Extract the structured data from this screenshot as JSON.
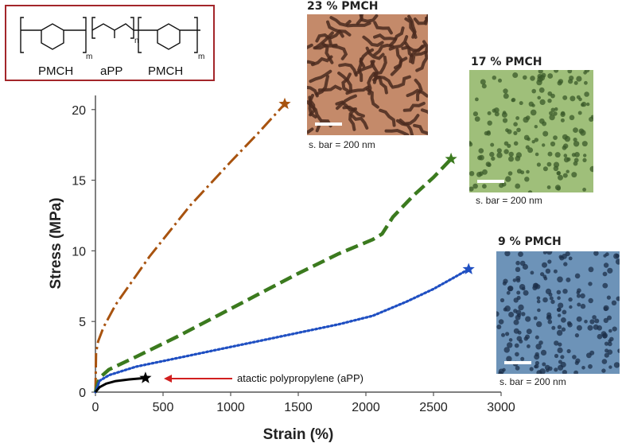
{
  "chart_data": {
    "type": "line",
    "xlabel": "Strain (%)",
    "ylabel": "Stress (MPa)",
    "xlim": [
      0,
      3000
    ],
    "ylim": [
      0,
      21
    ],
    "xticks": [
      "0",
      "500",
      "1000",
      "1500",
      "2000",
      "2500",
      "3000"
    ],
    "yticks": [
      "0",
      "5",
      "10",
      "15",
      "20"
    ],
    "grid": false,
    "series": [
      {
        "color": "#a8530f",
        "style": "dash-dot",
        "end_marker": "star",
        "points": [
          [
            0,
            0
          ],
          [
            5,
            2.8
          ],
          [
            20,
            3.6
          ],
          [
            60,
            4.6
          ],
          [
            150,
            6.2
          ],
          [
            400,
            9.6
          ],
          [
            700,
            13.2
          ],
          [
            1000,
            16.3
          ],
          [
            1200,
            18.3
          ],
          [
            1400,
            20.4
          ]
        ]
      },
      {
        "color": "#3b7a1e",
        "style": "dash",
        "end_marker": "star",
        "points": [
          [
            0,
            0
          ],
          [
            30,
            1.0
          ],
          [
            100,
            1.6
          ],
          [
            300,
            2.5
          ],
          [
            600,
            3.9
          ],
          [
            900,
            5.4
          ],
          [
            1200,
            6.9
          ],
          [
            1500,
            8.4
          ],
          [
            1800,
            9.8
          ],
          [
            2050,
            10.8
          ],
          [
            2120,
            11.2
          ],
          [
            2200,
            12.4
          ],
          [
            2350,
            13.9
          ],
          [
            2500,
            15.2
          ],
          [
            2630,
            16.5
          ]
        ]
      },
      {
        "color": "#1f4fc2",
        "style": "dot",
        "end_marker": "star",
        "points": [
          [
            0,
            0
          ],
          [
            30,
            0.8
          ],
          [
            100,
            1.2
          ],
          [
            300,
            1.8
          ],
          [
            600,
            2.4
          ],
          [
            900,
            3.0
          ],
          [
            1200,
            3.6
          ],
          [
            1500,
            4.2
          ],
          [
            1800,
            4.8
          ],
          [
            2050,
            5.4
          ],
          [
            2150,
            5.8
          ],
          [
            2300,
            6.4
          ],
          [
            2500,
            7.3
          ],
          [
            2650,
            8.1
          ],
          [
            2760,
            8.7
          ]
        ]
      },
      {
        "name": "atactic polypropylene (aPP)",
        "color": "#000000",
        "style": "solid",
        "end_marker": "star",
        "points": [
          [
            0,
            0
          ],
          [
            30,
            0.35
          ],
          [
            80,
            0.6
          ],
          [
            150,
            0.78
          ],
          [
            250,
            0.9
          ],
          [
            370,
            1.0
          ]
        ]
      }
    ],
    "annotation": {
      "text": "atactic polypropylene (aPP)",
      "arrow_color": "#d11f1f"
    }
  },
  "structure": {
    "labels": [
      "PMCH",
      "aPP",
      "PMCH"
    ],
    "subscripts": [
      "m",
      "n",
      "m"
    ]
  },
  "insets": [
    {
      "title": "23 % PMCH",
      "caption": "s. bar = 200 nm",
      "bg": "#c48a6a",
      "spot": "#4a2a1e",
      "pattern": "worm"
    },
    {
      "title": "17 % PMCH",
      "caption": "s. bar = 200 nm",
      "bg": "#9fbf7a",
      "spot": "#3a5a2a",
      "pattern": "dots"
    },
    {
      "title": "9 % PMCH",
      "caption": "s. bar = 200 nm",
      "bg": "#6d93b8",
      "spot": "#1c2f4a",
      "pattern": "dots"
    }
  ]
}
